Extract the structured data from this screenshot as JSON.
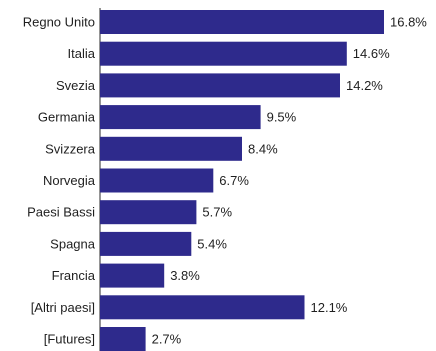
{
  "chart_data": {
    "type": "bar",
    "orientation": "horizontal",
    "categories": [
      "Regno Unito",
      "Italia",
      "Svezia",
      "Germania",
      "Svizzera",
      "Norvegia",
      "Paesi Bassi",
      "Spagna",
      "Francia",
      "[Altri paesi]",
      "[Futures]"
    ],
    "values": [
      16.8,
      14.6,
      14.2,
      9.5,
      8.4,
      6.7,
      5.7,
      5.4,
      3.8,
      12.1,
      2.7
    ],
    "value_labels": [
      "16.8%",
      "14.6%",
      "14.2%",
      "9.5%",
      "8.4%",
      "6.7%",
      "5.7%",
      "5.4%",
      "3.8%",
      "12.1%",
      "2.7%"
    ],
    "unit": "%",
    "xlim": [
      0,
      16.8
    ],
    "grid": false,
    "legend": "none",
    "bar_color": "#2e2a8c"
  }
}
